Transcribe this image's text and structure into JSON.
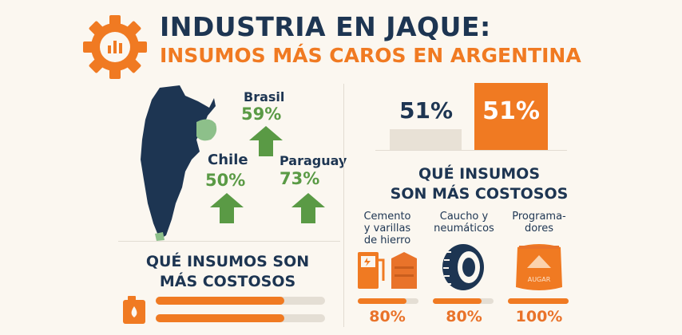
{
  "header": {
    "title": "INDUSTRIA EN JAQUE:",
    "subtitle": "INSUMOS MÁS CAROS EN ARGENTINA"
  },
  "countries": [
    {
      "name": "Brasil",
      "pct": "59%"
    },
    {
      "name": "Chile",
      "pct": "50%"
    },
    {
      "name": "Paraguay",
      "pct": "73%"
    }
  ],
  "compare": {
    "left_value": "51%",
    "right_value": "51%",
    "colors": {
      "left": "#e8e1d6",
      "right": "#f07a22"
    }
  },
  "left_section": {
    "title_line1": "QUÉ INSUMOS SON",
    "title_line2": "MÁS COSTOSOS",
    "bars": [
      {
        "fill": 0.76
      },
      {
        "fill": 0.76
      }
    ]
  },
  "right_section": {
    "title_line1": "QUÉ INSUMOS",
    "title_line2": "SON MÁS COSTOSOS",
    "items": [
      {
        "label_lines": [
          "Cemento",
          "y varillas",
          "de hierro"
        ],
        "pct": "80%",
        "fill": 0.8,
        "icon": "fuel-pump-icon"
      },
      {
        "label_lines": [
          "Caucho y",
          "neumáticos"
        ],
        "pct": "80%",
        "fill": 0.8,
        "icon": "tire-icon"
      },
      {
        "label_lines": [
          "Programa-",
          "dores"
        ],
        "pct": "100%",
        "fill": 1.0,
        "icon": "sugar-sack-icon",
        "sack_text": "AUGAR"
      }
    ]
  },
  "colors": {
    "navy": "#1d3552",
    "orange": "#f07a22",
    "green": "#5a9a45",
    "light_green": "#8dc08a"
  }
}
